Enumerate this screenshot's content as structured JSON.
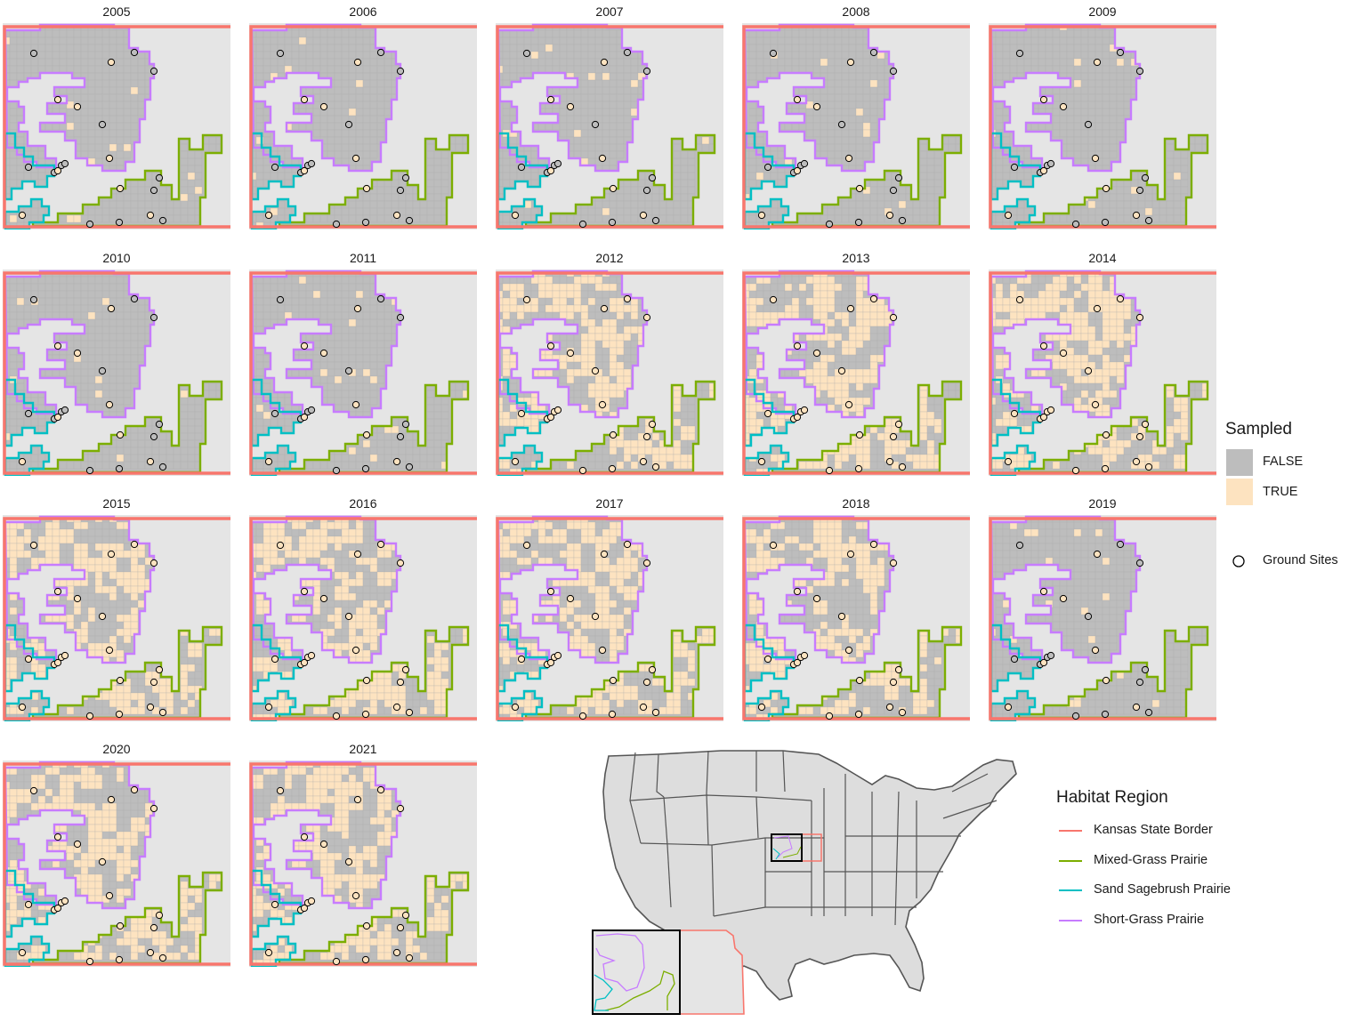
{
  "panels": [
    {
      "year": "2005",
      "sampled": false
    },
    {
      "year": "2006",
      "sampled": false
    },
    {
      "year": "2007",
      "sampled": false
    },
    {
      "year": "2008",
      "sampled": false
    },
    {
      "year": "2009",
      "sampled": false
    },
    {
      "year": "2010",
      "sampled": false
    },
    {
      "year": "2011",
      "sampled": false
    },
    {
      "year": "2012",
      "sampled": true
    },
    {
      "year": "2013",
      "sampled": true
    },
    {
      "year": "2014",
      "sampled": true
    },
    {
      "year": "2015",
      "sampled": true
    },
    {
      "year": "2016",
      "sampled": true
    },
    {
      "year": "2017",
      "sampled": true
    },
    {
      "year": "2018",
      "sampled": true
    },
    {
      "year": "2019",
      "sampled": false
    },
    {
      "year": "2020",
      "sampled": true
    },
    {
      "year": "2021",
      "sampled": true
    }
  ],
  "legend_sampled": {
    "title": "Sampled",
    "items": [
      {
        "label": "FALSE",
        "color": "#bdbdbd"
      },
      {
        "label": "TRUE",
        "color": "#fde3c0"
      }
    ],
    "sites_label": "Ground Sites"
  },
  "legend_region": {
    "title": "Habitat Region",
    "items": [
      {
        "label": "Kansas State Border",
        "color": "#f8766d"
      },
      {
        "label": "Mixed-Grass Prairie",
        "color": "#7cae00"
      },
      {
        "label": "Sand Sagebrush Prairie",
        "color": "#00bfc4"
      },
      {
        "label": "Short-Grass Prairie",
        "color": "#c77cff"
      }
    ]
  },
  "colors": {
    "background": "#e5e5e5",
    "grid_false": "#bdbdbd",
    "grid_true": "#fde3c0",
    "state_lines": "#555555"
  }
}
